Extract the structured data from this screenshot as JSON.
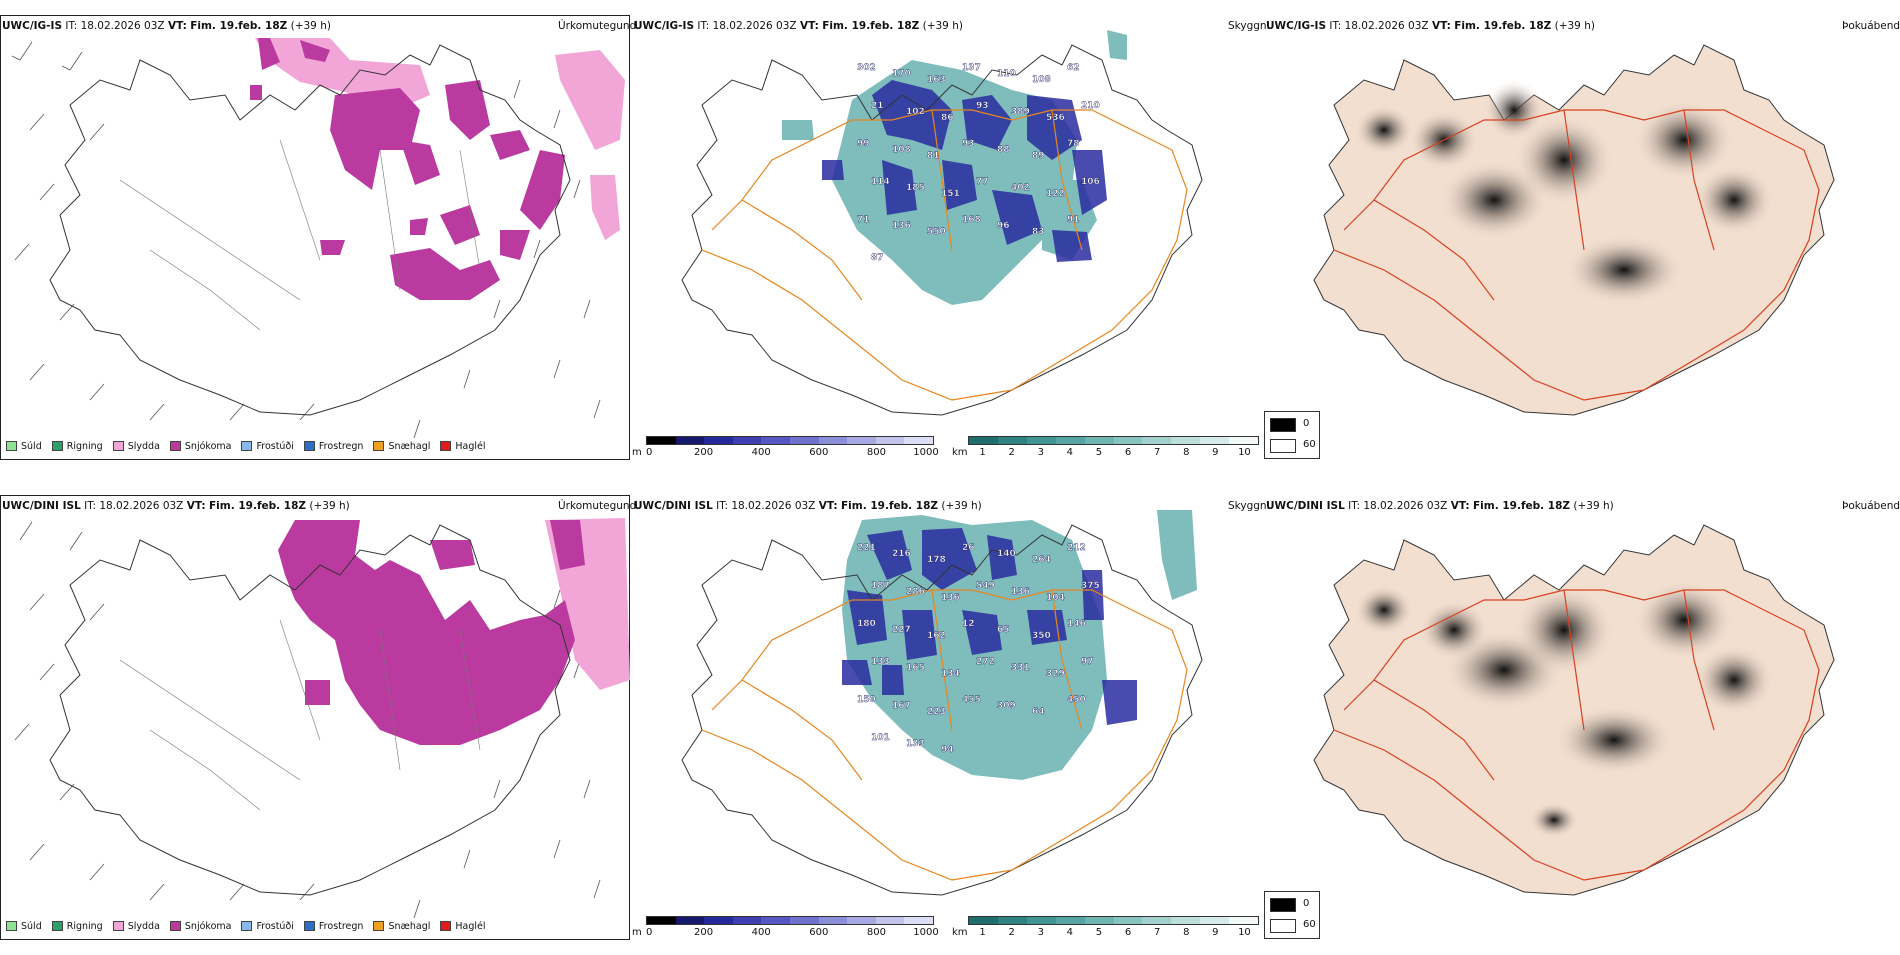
{
  "rows": [
    {
      "model": "UWC/IG-IS",
      "run": "IT: 18.02.2026 03Z",
      "vt_label": "VT:",
      "valid": "Fim. 19.feb. 18Z",
      "lead": "(+39 h)",
      "cloud_labels": [
        "302",
        "170",
        "163",
        "137",
        "110",
        "108",
        "62",
        "21",
        "102",
        "86",
        "93",
        "389",
        "536",
        "210",
        "99",
        "108",
        "81",
        "93",
        "88",
        "89",
        "78",
        "114",
        "185",
        "151",
        "77",
        "402",
        "122",
        "106",
        "71",
        "136",
        "550",
        "168",
        "96",
        "83",
        "91",
        "87"
      ],
      "fog_value": "0"
    },
    {
      "model": "UWC/DINI ISL",
      "run": "IT: 18.02.2026 03Z",
      "vt_label": "VT:",
      "valid": "Fim. 19.feb. 18Z",
      "lead": "(+39 h)",
      "cloud_labels": [
        "221",
        "216",
        "178",
        "26",
        "140",
        "264",
        "212",
        "187",
        "286",
        "136",
        "549",
        "136",
        "104",
        "375",
        "180",
        "227",
        "162",
        "12",
        "65",
        "350",
        "146",
        "133",
        "165",
        "134",
        "272",
        "331",
        "329",
        "97",
        "150",
        "167",
        "223",
        "455",
        "309",
        "64",
        "450",
        "101",
        "133",
        "94"
      ],
      "fog_value": "0"
    }
  ],
  "titles": {
    "precip": "Úrkomutegund",
    "cloud": "Skyggni",
    "fog": "Þokuábendi"
  },
  "precip_legend": [
    {
      "label": "Súld",
      "color": "#8fe28f"
    },
    {
      "label": "Rigning",
      "color": "#2e9e6a"
    },
    {
      "label": "Slydda",
      "color": "#f2a6d8"
    },
    {
      "label": "Snjókoma",
      "color": "#bb3aa0"
    },
    {
      "label": "Frostúði",
      "color": "#8ab8ea"
    },
    {
      "label": "Frostregn",
      "color": "#2d6fc4"
    },
    {
      "label": "Snæhagl",
      "color": "#f0a020"
    },
    {
      "label": "Haglél",
      "color": "#e01b1b"
    }
  ],
  "cloud_bar_m": {
    "unit": "m",
    "ticks": [
      "0",
      "200",
      "400",
      "600",
      "800",
      "1000"
    ],
    "colors": [
      "#000000",
      "#16186e",
      "#26299a",
      "#3d3fb0",
      "#5558c2",
      "#6f72cf",
      "#8b8ed9",
      "#a7a9e3",
      "#c2c4ec",
      "#dcdef5"
    ]
  },
  "cloud_bar_km": {
    "unit": "km",
    "ticks": [
      "1",
      "2",
      "3",
      "4",
      "5",
      "6",
      "7",
      "8",
      "9",
      "10"
    ],
    "colors": [
      "#1f6d6d",
      "#2f8282",
      "#3f9494",
      "#55a5a3",
      "#6eb5b2",
      "#88c4c0",
      "#a3d2ce",
      "#bddfdc",
      "#d6ecea",
      "#f2f9f8"
    ]
  },
  "fog_key": {
    "high": "0",
    "low": "60"
  },
  "colors": {
    "snow": "#bb3aa0",
    "sleet": "#f2a6d8",
    "road": "#e8861e",
    "cloud_low": "#2a2ca0",
    "cloud_high": "#3a9a98",
    "land_fog": "#f3dfd0"
  }
}
